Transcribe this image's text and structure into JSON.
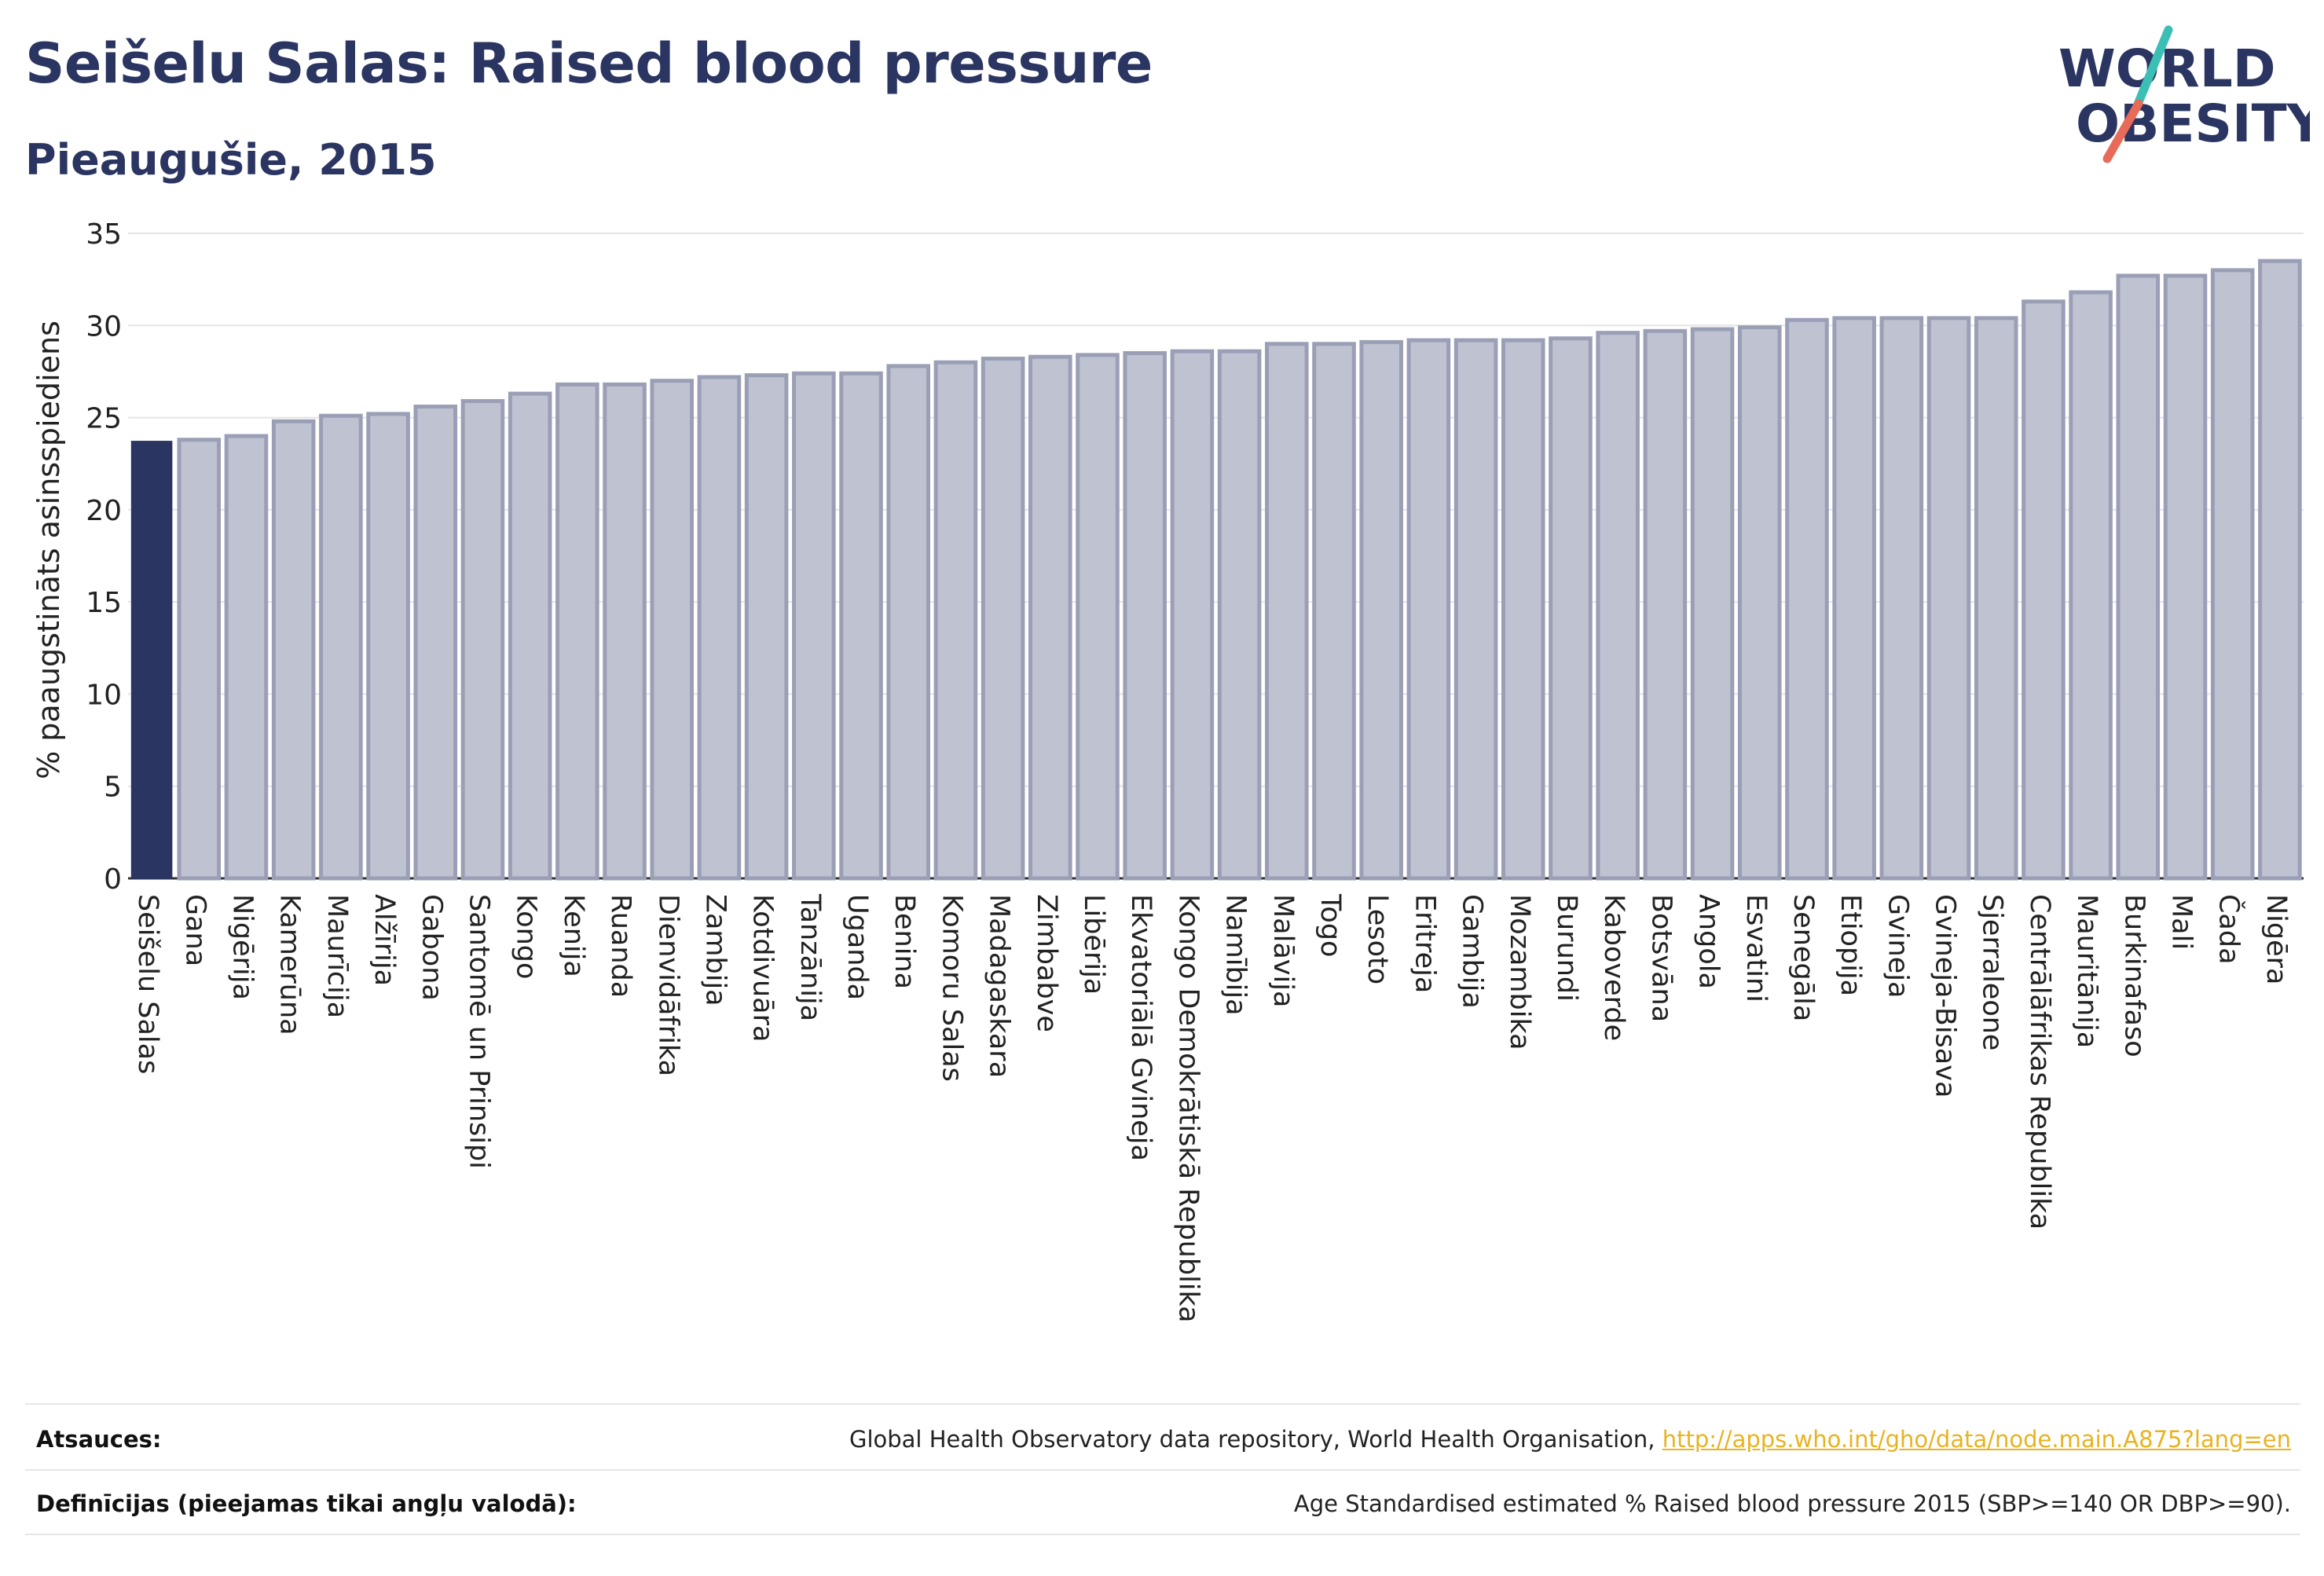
{
  "header": {
    "title": "Seišelu Salas: Raised blood pressure",
    "subtitle": "Pieaugušie, 2015"
  },
  "logo": {
    "line1": "WORLD",
    "line2": "OBESITY"
  },
  "chart_data": {
    "type": "bar",
    "title": "Seišelu Salas: Raised blood pressure",
    "subtitle": "Pieaugušie, 2015",
    "ylabel": "% paaugstināts asinsspiediens",
    "xlabel": "",
    "ylim": [
      0,
      35
    ],
    "yticks": [
      0,
      5,
      10,
      15,
      20,
      25,
      30,
      35
    ],
    "grid": true,
    "highlight_category": "Seišelu Salas",
    "highlight_color": "#2b3561",
    "bar_color": "#bfc2d0",
    "bar_edge_color": "#9a9fb6",
    "categories": [
      "Seišelu Salas",
      "Gana",
      "Nigērija",
      "Kamerūna",
      "Maurīcija",
      "Alžīrija",
      "Gabona",
      "Santomē un Prinsipi",
      "Kongo",
      "Kenija",
      "Ruanda",
      "Dienvidāfrika",
      "Zambija",
      "Kotdivuāra",
      "Tanzānija",
      "Uganda",
      "Benina",
      "Komoru Salas",
      "Madagaskara",
      "Zimbabve",
      "Libērija",
      "Ekvatoriālā Gvineja",
      "Kongo Demokrātiskā Republika",
      "Namībija",
      "Malāvija",
      "Togo",
      "Lesoto",
      "Eritreja",
      "Gambija",
      "Mozambika",
      "Burundi",
      "Kaboverde",
      "Botsvāna",
      "Angola",
      "Esvatini",
      "Senegāla",
      "Etiopija",
      "Gvineja",
      "Gvineja-Bisava",
      "Sjerraleone",
      "Centrālāfrikas Republika",
      "Mauritānija",
      "Burkinafaso",
      "Mali",
      "Čada",
      "Nigēra"
    ],
    "values": [
      23.7,
      23.8,
      24.0,
      24.8,
      25.1,
      25.2,
      25.6,
      25.9,
      26.3,
      26.8,
      26.8,
      27.0,
      27.2,
      27.3,
      27.4,
      27.4,
      27.8,
      28.0,
      28.2,
      28.3,
      28.4,
      28.5,
      28.6,
      28.6,
      29.0,
      29.0,
      29.1,
      29.2,
      29.2,
      29.2,
      29.3,
      29.6,
      29.7,
      29.8,
      29.9,
      30.3,
      30.4,
      30.4,
      30.4,
      30.4,
      31.3,
      31.8,
      32.7,
      32.7,
      33.0,
      33.5
    ]
  },
  "footer": {
    "sources_label": "Atsauces:",
    "sources_text": "Global Health Observatory data repository, World Health Organisation,",
    "sources_link": "http://apps.who.int/gho/data/node.main.A875?lang=en",
    "definitions_label": "Definīcijas (pieejamas tikai angļu valodā):",
    "definitions_text": "Age Standardised estimated % Raised blood pressure 2015 (SBP>=140 OR DBP>=90)."
  }
}
